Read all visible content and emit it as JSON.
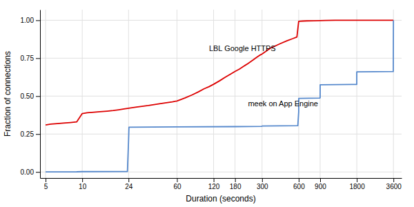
{
  "chart_data": {
    "type": "line",
    "xlabel": "Duration (seconds)",
    "ylabel": "Fraction of connections",
    "log": "x",
    "grid": true,
    "xlim": [
      4.5,
      4200
    ],
    "ylim": [
      -0.04,
      1.07
    ],
    "xticks": [
      5,
      10,
      24,
      60,
      120,
      180,
      300,
      600,
      900,
      1800,
      3600
    ],
    "yticks": [
      {
        "value": 0.0,
        "label": "0.00"
      },
      {
        "value": 0.25,
        "label": "0.25"
      },
      {
        "value": 0.5,
        "label": "0.50"
      },
      {
        "value": 0.75,
        "label": "0.75"
      },
      {
        "value": 1.0,
        "label": "1.00"
      }
    ],
    "series": [
      {
        "color": "#dd0000",
        "x": [
          5,
          5.5,
          6,
          7,
          8,
          9,
          10,
          11,
          12,
          14,
          16,
          18,
          20,
          22,
          24,
          28,
          35,
          45,
          55,
          60,
          70,
          80,
          90,
          100,
          110,
          120,
          135,
          150,
          165,
          180,
          195,
          210,
          225,
          240,
          255,
          270,
          285,
          300,
          350,
          420,
          480,
          540,
          580,
          600,
          650,
          700,
          800,
          900,
          1000,
          1200,
          1500,
          1800,
          2400,
          3000,
          3600
        ],
        "values": [
          0.31,
          0.315,
          0.318,
          0.322,
          0.326,
          0.33,
          0.385,
          0.39,
          0.393,
          0.397,
          0.401,
          0.405,
          0.41,
          0.415,
          0.42,
          0.428,
          0.438,
          0.452,
          0.462,
          0.468,
          0.488,
          0.508,
          0.528,
          0.548,
          0.562,
          0.578,
          0.602,
          0.625,
          0.645,
          0.663,
          0.678,
          0.695,
          0.71,
          0.725,
          0.74,
          0.755,
          0.768,
          0.778,
          0.815,
          0.845,
          0.865,
          0.88,
          0.89,
          0.993,
          0.995,
          0.996,
          0.997,
          0.998,
          0.999,
          1.0,
          1.0,
          1.0,
          1.0,
          1.0,
          1.0
        ]
      },
      {
        "color": "#5588cc",
        "x": [
          5,
          9,
          10,
          23.5,
          24,
          24.2,
          60,
          180,
          299,
          300,
          590,
          600,
          600.5,
          890,
          900,
          900.5,
          1799,
          1800,
          1800.5,
          3590,
          3600
        ],
        "values": [
          0.0,
          0.001,
          0.002,
          0.003,
          0.2,
          0.295,
          0.297,
          0.299,
          0.301,
          0.303,
          0.305,
          0.397,
          0.485,
          0.487,
          0.489,
          0.575,
          0.577,
          0.655,
          0.66,
          0.662,
          1.0
        ]
      }
    ],
    "annotations": [
      {
        "text": "LBL Google HTTPS",
        "x": 110,
        "y": 0.795
      },
      {
        "text": "meek on App Engine",
        "x": 230,
        "y": 0.435
      }
    ]
  }
}
